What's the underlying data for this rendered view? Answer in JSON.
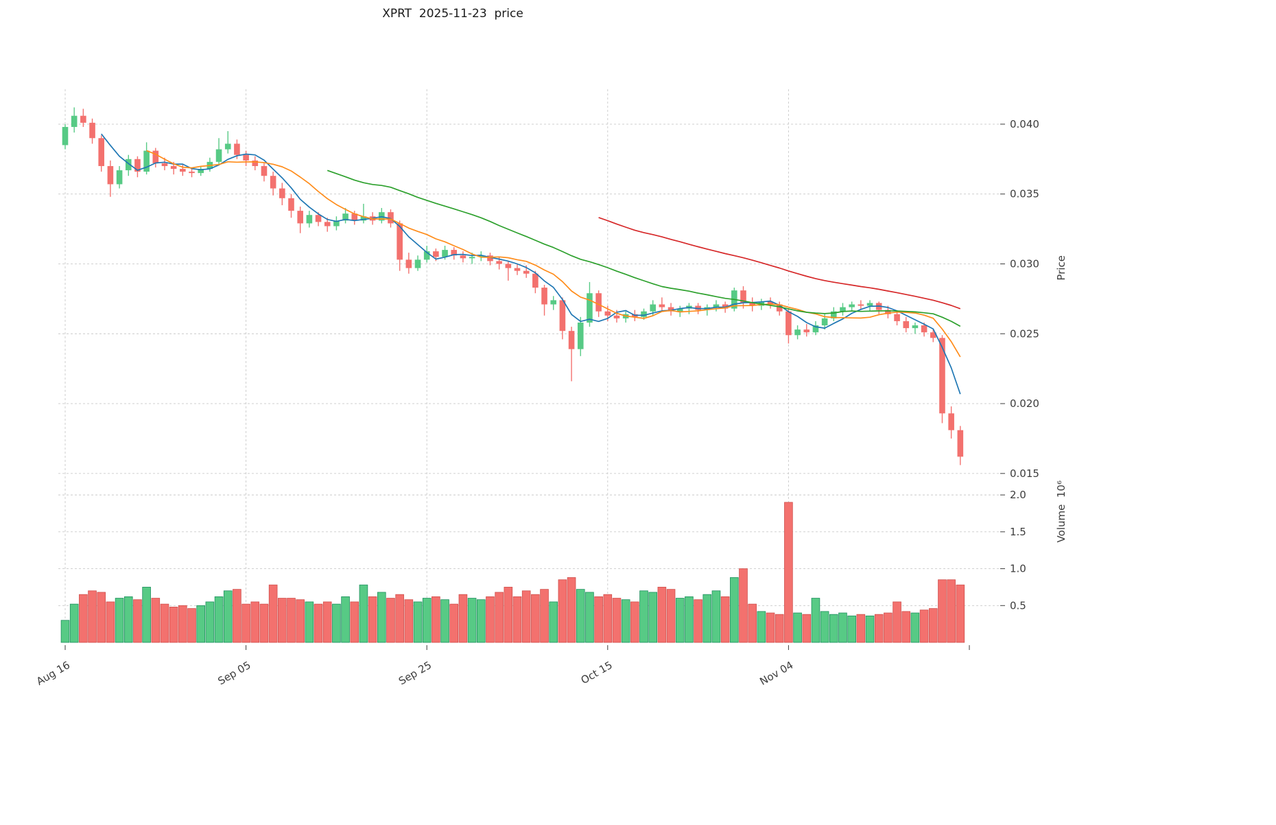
{
  "colors": {
    "up": "#57ca85",
    "up_edge": "#1f8f5f",
    "down": "#f3716e",
    "down_edge": "#cf4f4c",
    "ma_short": "#1f77b4",
    "ma_mid": "#ff8c1a",
    "ma_long": "#2ca02c",
    "ma_longest": "#d62728",
    "grid": "#c9c9c9",
    "tick_text": "#3c3c3c",
    "background": "#ffffff"
  },
  "chart_data": {
    "type": "candlestick",
    "title": "XPRT  2025-11-23  price",
    "ylabel": "Price",
    "ylabel_volume": "Volume  10⁶",
    "volume_unit": 1000000,
    "start_date": "2025-08-16",
    "end_date": "2025-11-23",
    "price_ticks": [
      0.015,
      0.02,
      0.025,
      0.03,
      0.035,
      0.04
    ],
    "price_range": [
      0.0145,
      0.0425
    ],
    "volume_ticks": [
      0.5,
      1.0,
      1.5,
      2.0
    ],
    "volume_range": [
      0,
      2.15
    ],
    "x_ticks": [
      {
        "index": 0,
        "label": "Aug 16"
      },
      {
        "index": 20,
        "label": "Sep 05"
      },
      {
        "index": 40,
        "label": "Sep 25"
      },
      {
        "index": 60,
        "label": "Oct 15"
      },
      {
        "index": 80,
        "label": "Nov 04"
      },
      {
        "index": 100,
        "label": ""
      }
    ],
    "moving_averages": [
      {
        "name": "SMA5",
        "window": 5,
        "color_key": "ma_short"
      },
      {
        "name": "SMA10",
        "window": 10,
        "color_key": "ma_mid"
      },
      {
        "name": "SMA30",
        "window": 30,
        "color_key": "ma_long"
      },
      {
        "name": "SMA60",
        "window": 60,
        "color_key": "ma_longest"
      }
    ],
    "candles_format": [
      "open",
      "high",
      "low",
      "close",
      "volume_millions"
    ],
    "candles": [
      [
        0.0385,
        0.04,
        0.0382,
        0.0398,
        0.3
      ],
      [
        0.0398,
        0.0412,
        0.0394,
        0.0406,
        0.52
      ],
      [
        0.0406,
        0.0411,
        0.0398,
        0.0401,
        0.65
      ],
      [
        0.0401,
        0.0404,
        0.0386,
        0.039,
        0.7
      ],
      [
        0.039,
        0.0392,
        0.0366,
        0.037,
        0.68
      ],
      [
        0.037,
        0.0374,
        0.0348,
        0.0357,
        0.55
      ],
      [
        0.0357,
        0.037,
        0.0354,
        0.0367,
        0.6
      ],
      [
        0.0367,
        0.0378,
        0.0363,
        0.0375,
        0.62
      ],
      [
        0.0375,
        0.0377,
        0.0362,
        0.0366,
        0.58
      ],
      [
        0.0366,
        0.0387,
        0.0364,
        0.0381,
        0.75
      ],
      [
        0.0381,
        0.0383,
        0.0369,
        0.0372,
        0.6
      ],
      [
        0.0372,
        0.0376,
        0.0367,
        0.037,
        0.52
      ],
      [
        0.037,
        0.0373,
        0.0364,
        0.0368,
        0.48
      ],
      [
        0.0368,
        0.0371,
        0.0363,
        0.0366,
        0.5
      ],
      [
        0.0366,
        0.0369,
        0.0362,
        0.0365,
        0.46
      ],
      [
        0.0365,
        0.037,
        0.0363,
        0.0368,
        0.5
      ],
      [
        0.0368,
        0.0376,
        0.0366,
        0.0373,
        0.55
      ],
      [
        0.0373,
        0.039,
        0.0371,
        0.0382,
        0.62
      ],
      [
        0.0382,
        0.0395,
        0.0379,
        0.0386,
        0.7
      ],
      [
        0.0386,
        0.0389,
        0.0375,
        0.0378,
        0.72
      ],
      [
        0.0378,
        0.0381,
        0.037,
        0.0374,
        0.52
      ],
      [
        0.0374,
        0.0377,
        0.0367,
        0.037,
        0.55
      ],
      [
        0.037,
        0.0372,
        0.0359,
        0.0363,
        0.52
      ],
      [
        0.0363,
        0.0366,
        0.0349,
        0.0354,
        0.78
      ],
      [
        0.0354,
        0.0358,
        0.0342,
        0.0347,
        0.6
      ],
      [
        0.0347,
        0.035,
        0.0333,
        0.0338,
        0.6
      ],
      [
        0.0338,
        0.0341,
        0.0322,
        0.0329,
        0.58
      ],
      [
        0.0329,
        0.0338,
        0.0326,
        0.0335,
        0.55
      ],
      [
        0.0335,
        0.0337,
        0.0327,
        0.033,
        0.52
      ],
      [
        0.033,
        0.0333,
        0.0323,
        0.0327,
        0.55
      ],
      [
        0.0327,
        0.0334,
        0.0324,
        0.0331,
        0.52
      ],
      [
        0.0331,
        0.034,
        0.0329,
        0.0336,
        0.62
      ],
      [
        0.0336,
        0.0338,
        0.0328,
        0.0331,
        0.55
      ],
      [
        0.0331,
        0.0343,
        0.0329,
        0.0334,
        0.78
      ],
      [
        0.0334,
        0.0337,
        0.0328,
        0.0331,
        0.62
      ],
      [
        0.0331,
        0.034,
        0.0329,
        0.0337,
        0.68
      ],
      [
        0.0337,
        0.0339,
        0.0326,
        0.0329,
        0.6
      ],
      [
        0.0329,
        0.0331,
        0.0295,
        0.0303,
        0.65
      ],
      [
        0.0303,
        0.0308,
        0.0293,
        0.0297,
        0.58
      ],
      [
        0.0297,
        0.0306,
        0.0295,
        0.0303,
        0.55
      ],
      [
        0.0303,
        0.0313,
        0.0301,
        0.0309,
        0.6
      ],
      [
        0.0309,
        0.0311,
        0.0302,
        0.0305,
        0.62
      ],
      [
        0.0305,
        0.0313,
        0.0303,
        0.031,
        0.58
      ],
      [
        0.031,
        0.0312,
        0.0303,
        0.0306,
        0.52
      ],
      [
        0.0306,
        0.0309,
        0.0301,
        0.0304,
        0.65
      ],
      [
        0.0304,
        0.0308,
        0.03,
        0.0305,
        0.6
      ],
      [
        0.0305,
        0.0309,
        0.0302,
        0.0306,
        0.58
      ],
      [
        0.0306,
        0.0308,
        0.0299,
        0.0302,
        0.62
      ],
      [
        0.0302,
        0.0305,
        0.0296,
        0.03,
        0.68
      ],
      [
        0.03,
        0.0302,
        0.0288,
        0.0297,
        0.75
      ],
      [
        0.0297,
        0.03,
        0.0292,
        0.0295,
        0.62
      ],
      [
        0.0295,
        0.0299,
        0.029,
        0.0293,
        0.7
      ],
      [
        0.0293,
        0.0295,
        0.0279,
        0.0283,
        0.65
      ],
      [
        0.0283,
        0.0285,
        0.0263,
        0.0271,
        0.72
      ],
      [
        0.0271,
        0.0277,
        0.0267,
        0.0274,
        0.55
      ],
      [
        0.0274,
        0.0276,
        0.0246,
        0.0252,
        0.85
      ],
      [
        0.0252,
        0.0255,
        0.0216,
        0.0239,
        0.88
      ],
      [
        0.0239,
        0.0262,
        0.0234,
        0.0258,
        0.72
      ],
      [
        0.0258,
        0.0287,
        0.0255,
        0.0279,
        0.68
      ],
      [
        0.0279,
        0.0281,
        0.0262,
        0.0266,
        0.62
      ],
      [
        0.0266,
        0.027,
        0.0259,
        0.0263,
        0.65
      ],
      [
        0.0263,
        0.0267,
        0.0258,
        0.0261,
        0.6
      ],
      [
        0.0261,
        0.0266,
        0.0258,
        0.0264,
        0.58
      ],
      [
        0.0264,
        0.0267,
        0.0259,
        0.0262,
        0.55
      ],
      [
        0.0262,
        0.0268,
        0.026,
        0.0266,
        0.7
      ],
      [
        0.0266,
        0.0274,
        0.0263,
        0.0271,
        0.68
      ],
      [
        0.0271,
        0.0276,
        0.0266,
        0.0269,
        0.75
      ],
      [
        0.0269,
        0.0272,
        0.0263,
        0.0266,
        0.72
      ],
      [
        0.0266,
        0.027,
        0.0262,
        0.0268,
        0.6
      ],
      [
        0.0268,
        0.0272,
        0.0264,
        0.027,
        0.62
      ],
      [
        0.027,
        0.0272,
        0.0264,
        0.0267,
        0.58
      ],
      [
        0.0267,
        0.0271,
        0.0263,
        0.0269,
        0.65
      ],
      [
        0.0269,
        0.0274,
        0.0266,
        0.0271,
        0.7
      ],
      [
        0.0271,
        0.0273,
        0.0265,
        0.0268,
        0.62
      ],
      [
        0.0268,
        0.0283,
        0.0266,
        0.0281,
        0.88
      ],
      [
        0.0281,
        0.0284,
        0.0268,
        0.0272,
        1.0
      ],
      [
        0.0272,
        0.0276,
        0.0266,
        0.027,
        0.52
      ],
      [
        0.027,
        0.0275,
        0.0267,
        0.0273,
        0.42
      ],
      [
        0.0273,
        0.0276,
        0.0268,
        0.0271,
        0.4
      ],
      [
        0.0271,
        0.0273,
        0.0263,
        0.0266,
        0.38
      ],
      [
        0.0266,
        0.0268,
        0.0243,
        0.0249,
        1.9
      ],
      [
        0.0249,
        0.0256,
        0.0246,
        0.0253,
        0.4
      ],
      [
        0.0253,
        0.0257,
        0.0248,
        0.0251,
        0.38
      ],
      [
        0.0251,
        0.0259,
        0.0249,
        0.0256,
        0.6
      ],
      [
        0.0256,
        0.0264,
        0.0253,
        0.0261,
        0.42
      ],
      [
        0.0261,
        0.0269,
        0.0259,
        0.0266,
        0.38
      ],
      [
        0.0266,
        0.0272,
        0.0263,
        0.0269,
        0.4
      ],
      [
        0.0269,
        0.0273,
        0.0266,
        0.0271,
        0.36
      ],
      [
        0.0271,
        0.0274,
        0.0267,
        0.027,
        0.38
      ],
      [
        0.027,
        0.0274,
        0.0266,
        0.0272,
        0.36
      ],
      [
        0.0272,
        0.0273,
        0.0264,
        0.0267,
        0.38
      ],
      [
        0.0267,
        0.027,
        0.0261,
        0.0264,
        0.4
      ],
      [
        0.0264,
        0.0266,
        0.0256,
        0.0259,
        0.55
      ],
      [
        0.0259,
        0.0262,
        0.0251,
        0.0254,
        0.42
      ],
      [
        0.0254,
        0.0258,
        0.025,
        0.0256,
        0.4
      ],
      [
        0.0256,
        0.0258,
        0.0248,
        0.0251,
        0.44
      ],
      [
        0.0251,
        0.0253,
        0.0244,
        0.0247,
        0.46
      ],
      [
        0.0247,
        0.0249,
        0.0186,
        0.0193,
        0.85
      ],
      [
        0.0193,
        0.0198,
        0.0175,
        0.0181,
        0.85
      ],
      [
        0.0181,
        0.0184,
        0.0156,
        0.0162,
        0.78
      ]
    ]
  }
}
